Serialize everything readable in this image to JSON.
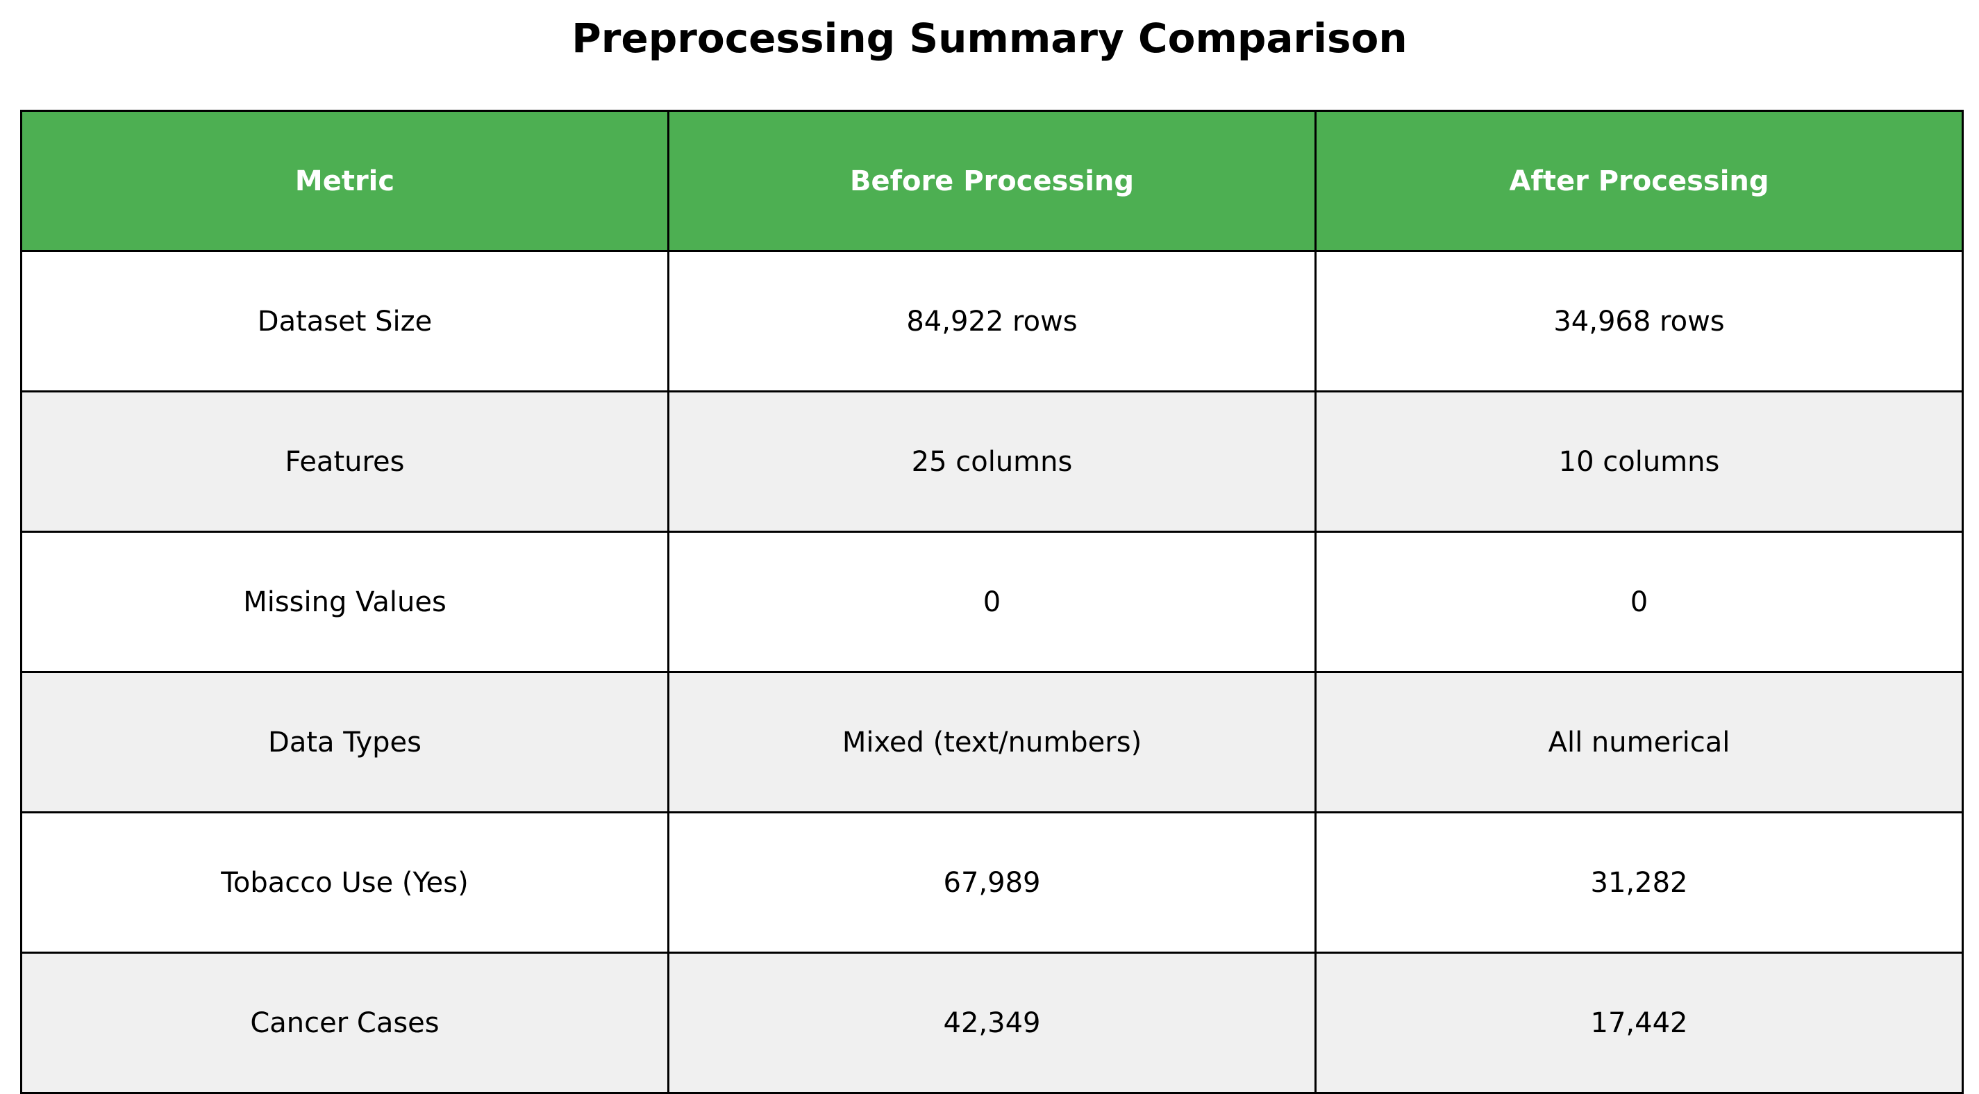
{
  "chart_data": {
    "type": "table",
    "title": "Preprocessing Summary Comparison",
    "columns": [
      "Metric",
      "Before Processing",
      "After Processing"
    ],
    "rows": [
      [
        "Dataset Size",
        "84,922 rows",
        "34,968 rows"
      ],
      [
        "Features",
        "25 columns",
        "10 columns"
      ],
      [
        "Missing Values",
        "0",
        "0"
      ],
      [
        "Data Types",
        "Mixed (text/numbers)",
        "All numerical"
      ],
      [
        "Tobacco Use (Yes)",
        "67,989",
        "31,282"
      ],
      [
        "Cancer Cases",
        "42,349",
        "17,442"
      ]
    ],
    "colors": {
      "header_background": "#4daf52",
      "header_text": "#ffffff",
      "row_alt_background": "#f0f0f0",
      "row_background": "#ffffff",
      "grid": "#000000"
    }
  }
}
